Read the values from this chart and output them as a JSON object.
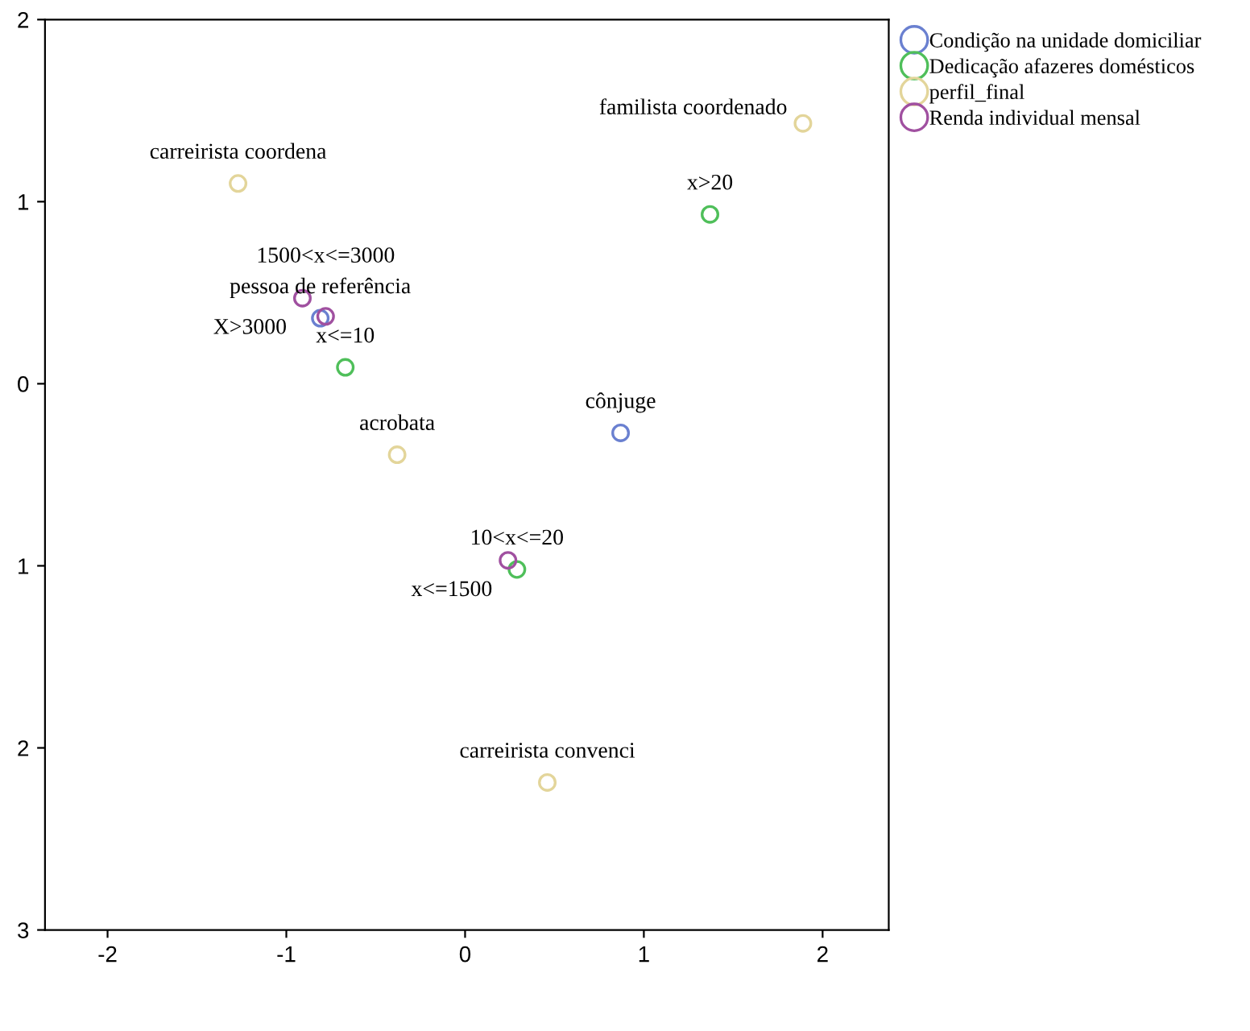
{
  "chart_data": {
    "type": "scatter",
    "marker": "circle",
    "legend": "top right",
    "grid": false,
    "xlim": [
      -2.35,
      2.37
    ],
    "xticks": [
      -2,
      -1,
      0,
      1,
      2
    ],
    "ylim": [
      -3,
      2
    ],
    "yticks": [
      {
        "value": -3,
        "label": "3"
      },
      {
        "value": -2,
        "label": "2"
      },
      {
        "value": -1,
        "label": "1"
      },
      0,
      1,
      2
    ],
    "series": [
      {
        "name": "Condição na unidade domiciliar",
        "color": "#6a80d0",
        "x": [
          -0.81,
          0.87
        ],
        "values": [
          0.36,
          -0.27
        ],
        "value_labels": [
          "pessoa de referência",
          "cônjuge"
        ]
      },
      {
        "name": "Dedicação afazeres domésticos",
        "color": "#4fbf5a",
        "x": [
          -0.67,
          1.37,
          0.29
        ],
        "values": [
          0.09,
          0.93,
          -1.02
        ],
        "value_labels": [
          "x<=10",
          "x>20",
          "10<x<=20"
        ]
      },
      {
        "name": "perfil_final",
        "color": "#e3d59a",
        "x": [
          -1.27,
          1.89,
          -0.38,
          0.46
        ],
        "values": [
          1.1,
          1.43,
          -0.39,
          -2.19
        ],
        "value_labels": [
          "carreirista coordena",
          "familista coordenado",
          "acrobata",
          "carreirista convenci"
        ]
      },
      {
        "name": "Renda individual mensal",
        "color": "#a050a0",
        "x": [
          -0.91,
          -0.78,
          0.24
        ],
        "values": [
          0.47,
          0.37,
          -0.97
        ],
        "value_labels": [
          "X>3000",
          "1500<x<=3000",
          "x<=1500"
        ]
      }
    ]
  }
}
